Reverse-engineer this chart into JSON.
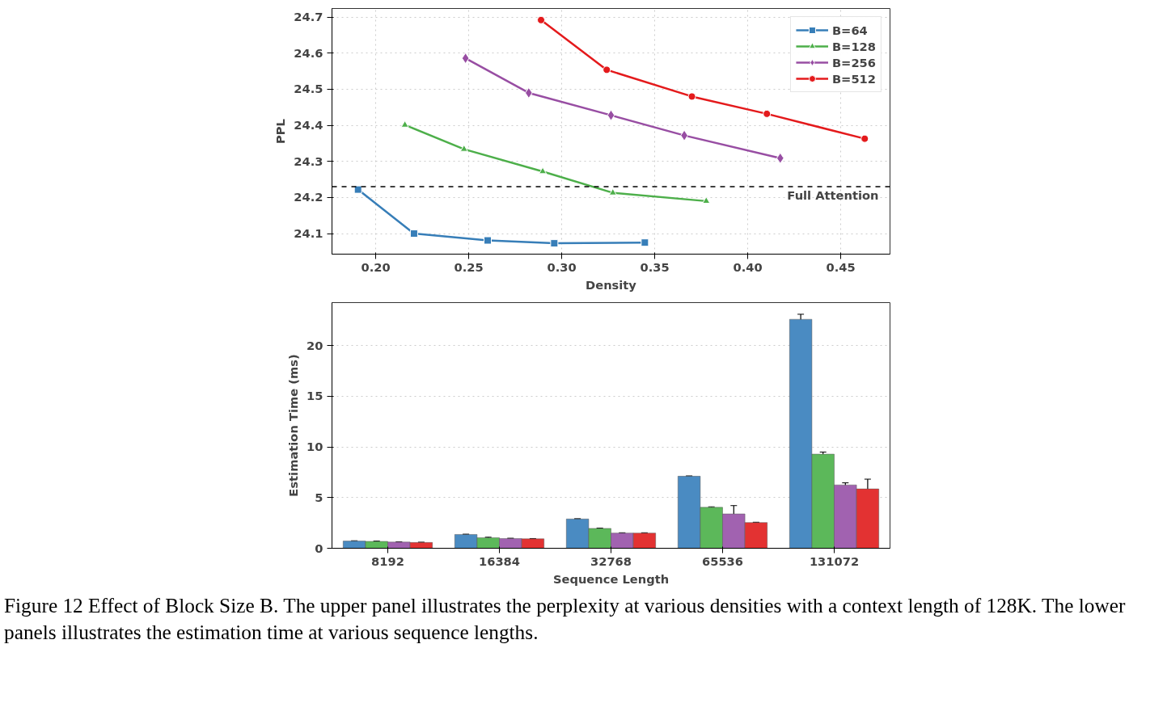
{
  "chart_data": [
    {
      "type": "line",
      "xlabel": "Density",
      "ylabel": "PPL",
      "xlim": [
        0.1765,
        0.4765
      ],
      "ylim": [
        24.043,
        24.724
      ],
      "xticks": [
        {
          "value": 0.2,
          "label": "0.20"
        },
        {
          "value": 0.25,
          "label": "0.25"
        },
        {
          "value": 0.3,
          "label": "0.30"
        },
        {
          "value": 0.35,
          "label": "0.35"
        },
        {
          "value": 0.4,
          "label": "0.40"
        },
        {
          "value": 0.45,
          "label": "0.45"
        }
      ],
      "yticks": [
        24.1,
        24.2,
        24.3,
        24.4,
        24.5,
        24.6,
        24.7
      ],
      "grid": true,
      "legend": "top right",
      "line_style": "solid",
      "series": [
        {
          "name": "B=64",
          "color": "#377eb8",
          "marker": "square",
          "x": [
            0.1905,
            0.2206,
            0.2602,
            0.296,
            0.3447
          ],
          "values": [
            24.222,
            24.1,
            24.081,
            24.073,
            24.075
          ]
        },
        {
          "name": "B=128",
          "color": "#4daf4a",
          "marker": "triangle",
          "x": [
            0.2157,
            0.2475,
            0.2898,
            0.3275,
            0.3777
          ],
          "values": [
            24.401,
            24.334,
            24.272,
            24.213,
            24.19
          ]
        },
        {
          "name": "B=256",
          "color": "#984ea3",
          "marker": "diamond",
          "x": [
            0.2483,
            0.2823,
            0.3265,
            0.3659,
            0.4175
          ],
          "values": [
            24.586,
            24.49,
            24.428,
            24.372,
            24.309
          ]
        },
        {
          "name": "B=512",
          "color": "#e41a1c",
          "marker": "circle",
          "x": [
            0.2889,
            0.3242,
            0.37,
            0.4103,
            0.4629
          ],
          "values": [
            24.692,
            24.554,
            24.48,
            24.432,
            24.363
          ]
        }
      ],
      "ref_lines": [
        {
          "axis": "y",
          "value": 24.23,
          "label": "Full Attention",
          "color": "#000000",
          "line_style": "dashed"
        }
      ]
    },
    {
      "type": "bar",
      "xlabel": "Sequence Length",
      "ylabel": "Estimation Time (ms)",
      "categories": [
        "8192",
        "16384",
        "32768",
        "65536",
        "131072"
      ],
      "ylim": [
        0,
        24.25
      ],
      "yticks": [
        0,
        5,
        10,
        15,
        20
      ],
      "grid": "y",
      "series": [
        {
          "color": "#4a8bc2",
          "values": [
            0.71,
            1.36,
            2.89,
            7.11,
            22.6
          ],
          "errors": [
            0.03,
            0.03,
            0.03,
            0.03,
            0.5
          ]
        },
        {
          "color": "#5cb85a",
          "values": [
            0.68,
            1.04,
            1.96,
            4.04,
            9.29
          ],
          "errors": [
            0.03,
            0.05,
            0.03,
            0.05,
            0.21
          ]
        },
        {
          "color": "#a162b0",
          "values": [
            0.61,
            0.96,
            1.5,
            3.39,
            6.25
          ],
          "errors": [
            0.03,
            0.03,
            0.03,
            0.82,
            0.21
          ]
        },
        {
          "color": "#e33232",
          "values": [
            0.57,
            0.93,
            1.5,
            2.54,
            5.86
          ],
          "errors": [
            0.03,
            0.03,
            0.03,
            0.03,
            0.96
          ]
        }
      ],
      "annotations": [
        "Figure 12 Effect of Block Size B. The upper panel illustrates the perplexity at various densities with a context length of 128K. The lower panels illustrates the estimation time at various sequence lengths."
      ]
    }
  ]
}
